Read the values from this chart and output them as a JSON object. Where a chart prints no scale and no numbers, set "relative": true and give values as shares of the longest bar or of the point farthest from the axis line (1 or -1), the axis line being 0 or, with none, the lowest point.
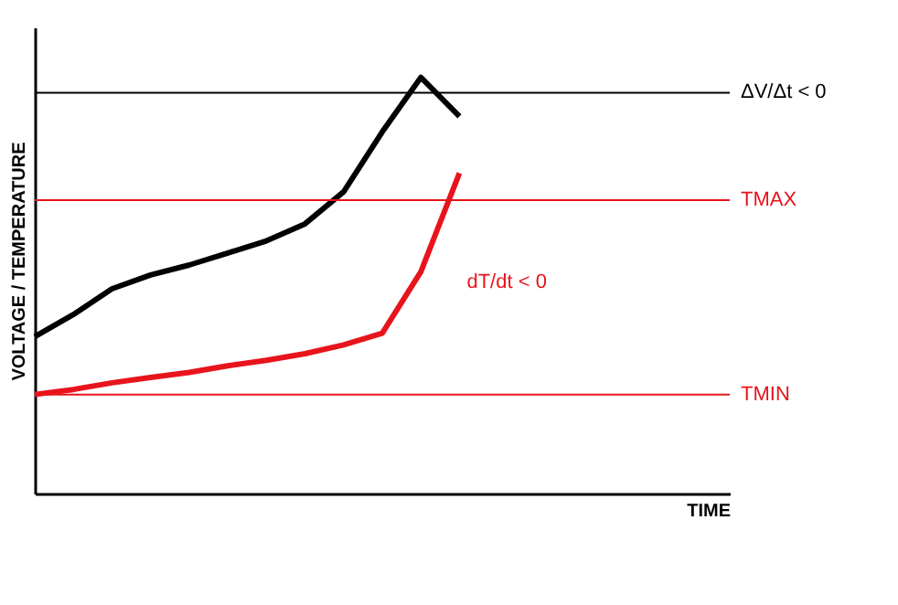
{
  "chart_data": {
    "type": "line",
    "relative": true,
    "xlabel": "TIME",
    "ylabel": "VOLTAGE / TEMPERATURE",
    "tick_labels": false,
    "grid": false,
    "marker": "none",
    "line_style": "solid",
    "categories": [
      null,
      null,
      null,
      null,
      null,
      null,
      null,
      null,
      null,
      null,
      null,
      null,
      null,
      null,
      null,
      null,
      null,
      null,
      null
    ],
    "series": [
      {
        "color": "#000000",
        "values": [
          0.377,
          0.43,
          0.492,
          0.525,
          0.549,
          0.578,
          0.607,
          0.648,
          0.725,
          0.869,
          1,
          0.906,
          null,
          null,
          null,
          null,
          null,
          null,
          null
        ]
      },
      {
        "color": "#e8141c",
        "values": [
          0.238,
          0.25,
          0.266,
          0.279,
          0.291,
          0.307,
          0.32,
          0.336,
          0.357,
          0.385,
          0.533,
          0.77,
          null,
          null,
          null,
          null,
          null,
          null,
          null
        ]
      }
    ],
    "ref_lines": [
      {
        "axis": "y",
        "value": 0.963,
        "label": "ΔV/Δt < 0",
        "color": "#000000"
      },
      {
        "axis": "y",
        "value": 0.705,
        "label": "TMAX",
        "color": "#e8141c"
      },
      {
        "axis": "y",
        "value": 0.238,
        "label": "TMIN",
        "color": "#e8141c"
      }
    ],
    "annotations": [
      "dT/dt < 0"
    ]
  }
}
